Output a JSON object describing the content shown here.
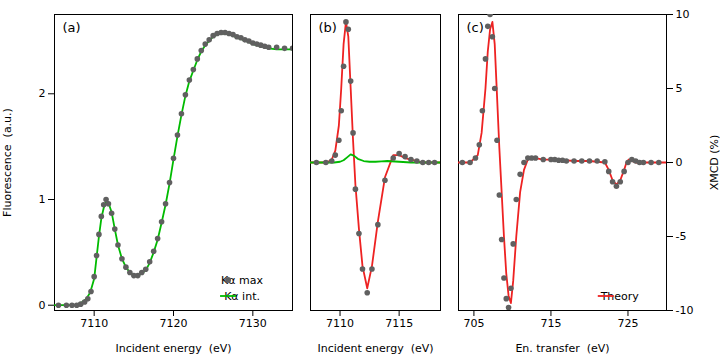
{
  "chart_data": [
    {
      "type": "line",
      "annotations": [
        "(a)"
      ],
      "xlabel": "Incident energy  (eV)",
      "ylabel": "Fluorescence  (a.u.)",
      "xlim": [
        7105,
        7135
      ],
      "xticks": [
        7110,
        7120,
        7130
      ],
      "ylim": [
        -0.05,
        2.75
      ],
      "yticks": [
        0,
        1,
        2
      ],
      "legend": "lower right",
      "series": [
        {
          "name": "Kα max",
          "type": "scatter",
          "marker": "o",
          "color": "#606060",
          "x": [
            7105.5,
            7106.5,
            7107.2,
            7107.8,
            7108.3,
            7108.8,
            7109.2,
            7109.6,
            7110.0,
            7110.3,
            7110.6,
            7110.9,
            7111.2,
            7111.5,
            7111.8,
            7112.2,
            7112.6,
            7113.0,
            7113.5,
            7114.0,
            7114.5,
            7115.0,
            7115.5,
            7116.0,
            7116.5,
            7117.0,
            7117.5,
            7118.0,
            7118.5,
            7119.0,
            7119.5,
            7120.0,
            7120.5,
            7121.0,
            7121.5,
            7122.0,
            7122.5,
            7123.0,
            7123.5,
            7124.0,
            7124.5,
            7125.0,
            7125.5,
            7126.0,
            7126.5,
            7127.0,
            7127.5,
            7128.0,
            7128.5,
            7129.0,
            7129.5,
            7130.0,
            7130.5,
            7131.0,
            7131.5,
            7132.0,
            7133.0,
            7134.0,
            7135.0
          ],
          "values": [
            0.0,
            0.0,
            0.0,
            0.0,
            0.01,
            0.03,
            0.06,
            0.13,
            0.27,
            0.47,
            0.67,
            0.84,
            0.95,
            1.0,
            0.96,
            0.87,
            0.72,
            0.57,
            0.44,
            0.36,
            0.31,
            0.28,
            0.28,
            0.31,
            0.34,
            0.41,
            0.51,
            0.63,
            0.79,
            0.96,
            1.16,
            1.39,
            1.61,
            1.81,
            1.99,
            2.13,
            2.23,
            2.33,
            2.41,
            2.47,
            2.51,
            2.55,
            2.57,
            2.58,
            2.58,
            2.57,
            2.56,
            2.54,
            2.53,
            2.51,
            2.5,
            2.48,
            2.47,
            2.46,
            2.45,
            2.44,
            2.44,
            2.43,
            2.43
          ]
        },
        {
          "name": "Kα int.",
          "type": "line",
          "color": "#00bb00",
          "x": [
            7105.0,
            7106.0,
            7107.0,
            7107.5,
            7108.0,
            7108.5,
            7109.0,
            7109.5,
            7110.0,
            7110.3,
            7110.6,
            7110.9,
            7111.2,
            7111.5,
            7111.8,
            7112.2,
            7112.6,
            7113.0,
            7113.5,
            7114.0,
            7114.5,
            7115.0,
            7115.5,
            7116.0,
            7116.5,
            7117.0,
            7117.5,
            7118.0,
            7118.5,
            7119.0,
            7119.5,
            7120.0,
            7120.5,
            7121.0,
            7121.5,
            7122.0,
            7122.5,
            7123.0,
            7123.5,
            7124.0,
            7124.5,
            7125.0,
            7125.5,
            7126.0,
            7126.5,
            7127.0,
            7127.5,
            7128.0,
            7128.5,
            7129.0,
            7129.5,
            7130.0,
            7130.5,
            7131.0,
            7132.0,
            7133.0,
            7134.0,
            7135.0
          ],
          "values": [
            0.0,
            0.0,
            0.0,
            0.0,
            0.01,
            0.03,
            0.06,
            0.12,
            0.25,
            0.45,
            0.65,
            0.82,
            0.92,
            0.98,
            0.97,
            0.88,
            0.72,
            0.57,
            0.44,
            0.36,
            0.31,
            0.28,
            0.28,
            0.3,
            0.33,
            0.4,
            0.5,
            0.62,
            0.78,
            0.95,
            1.15,
            1.38,
            1.6,
            1.8,
            1.98,
            2.12,
            2.22,
            2.32,
            2.4,
            2.46,
            2.5,
            2.54,
            2.56,
            2.57,
            2.57,
            2.56,
            2.55,
            2.53,
            2.52,
            2.5,
            2.49,
            2.47,
            2.46,
            2.45,
            2.43,
            2.42,
            2.42,
            2.42
          ]
        }
      ]
    },
    {
      "type": "line",
      "annotations": [
        "(b)"
      ],
      "xlabel": "Incident energy  (eV)",
      "xlim": [
        7107.5,
        7118.5
      ],
      "xticks": [
        7110,
        7115
      ],
      "ylim": [
        -10,
        10
      ],
      "tick_labels": "x",
      "series": [
        {
          "type": "line",
          "color": "#ee2222",
          "x": [
            7107.5,
            7108.5,
            7109.0,
            7109.3,
            7109.6,
            7109.9,
            7110.1,
            7110.3,
            7110.5,
            7110.7,
            7110.9,
            7111.1,
            7111.3,
            7111.6,
            7111.9,
            7112.3,
            7112.7,
            7113.2,
            7113.8,
            7114.5,
            7115.0,
            7115.5,
            7116.0,
            7116.5,
            7117.0,
            7117.5,
            7118.0,
            7118.5
          ],
          "values": [
            0.0,
            0.0,
            0.05,
            0.2,
            0.8,
            2.5,
            5.0,
            8.0,
            9.5,
            8.5,
            5.0,
            1.5,
            -1.5,
            -4.5,
            -7.0,
            -8.5,
            -7.0,
            -4.0,
            -1.0,
            0.5,
            0.5,
            0.3,
            0.2,
            0.1,
            0.0,
            0.0,
            0.0,
            0.0
          ]
        },
        {
          "type": "line",
          "color": "#00bb00",
          "x": [
            7107.5,
            7108.5,
            7109.0,
            7109.5,
            7110.0,
            7110.3,
            7110.6,
            7110.9,
            7111.2,
            7111.5,
            7112.0,
            7112.5,
            7113.0,
            7113.5,
            7114.0,
            7115.0,
            7116.0,
            7117.0,
            7118.0,
            7118.5
          ],
          "values": [
            0.0,
            0.0,
            0.0,
            0.0,
            0.05,
            0.15,
            0.35,
            0.55,
            0.45,
            0.25,
            0.1,
            0.05,
            0.05,
            0.08,
            0.1,
            0.05,
            0.0,
            0.0,
            0.0,
            0.0
          ]
        },
        {
          "type": "scatter",
          "marker": "o",
          "color": "#606060",
          "x": [
            7108.0,
            7108.8,
            7109.3,
            7109.6,
            7109.9,
            7110.1,
            7110.3,
            7110.5,
            7110.7,
            7110.9,
            7111.1,
            7111.3,
            7111.6,
            7111.9,
            7112.3,
            7112.7,
            7113.2,
            7113.8,
            7114.5,
            7115.0,
            7115.5,
            7116.0,
            7116.5,
            7117.0,
            7117.5,
            7118.0
          ],
          "values": [
            0.0,
            0.0,
            0.1,
            0.5,
            1.5,
            3.5,
            6.5,
            9.5,
            9.0,
            5.5,
            2.0,
            -1.8,
            -4.8,
            -7.2,
            -8.8,
            -7.2,
            -4.2,
            -1.2,
            0.3,
            0.6,
            0.4,
            0.2,
            0.1,
            0.0,
            0.0,
            0.0
          ]
        }
      ]
    },
    {
      "type": "line",
      "annotations": [
        "(c)"
      ],
      "xlabel": "En. transfer  (eV)",
      "ylabel": "XMCD (%)",
      "xlim": [
        703,
        730
      ],
      "xticks": [
        705,
        715,
        725
      ],
      "ylim": [
        -10,
        10
      ],
      "yticks": [
        -10,
        -5,
        0,
        5,
        10
      ],
      "legend": "lower right",
      "series": [
        {
          "name": "Theory",
          "type": "line",
          "color": "#ee2222",
          "x": [
            703.0,
            704.5,
            705.5,
            706.0,
            706.5,
            706.8,
            707.1,
            707.4,
            707.7,
            708.0,
            708.3,
            708.6,
            708.9,
            709.2,
            709.5,
            709.8,
            710.1,
            710.5,
            711.0,
            711.5,
            712.0,
            712.5,
            713.0,
            714.0,
            715.0,
            716.0,
            717.0,
            718.0,
            720.0,
            722.0,
            722.5,
            723.0,
            723.5,
            724.0,
            724.5,
            724.8,
            725.1,
            725.5,
            726.0,
            727.0,
            728.0,
            730.0
          ],
          "values": [
            0.0,
            0.0,
            0.5,
            2.0,
            5.0,
            7.5,
            9.0,
            9.5,
            8.0,
            4.5,
            1.0,
            -2.0,
            -5.0,
            -7.5,
            -9.0,
            -9.5,
            -8.0,
            -5.0,
            -2.0,
            -0.5,
            0.2,
            0.3,
            0.3,
            0.2,
            0.2,
            0.2,
            0.15,
            0.1,
            0.1,
            0.0,
            -0.5,
            -1.2,
            -1.5,
            -1.2,
            -0.5,
            0.0,
            0.2,
            0.1,
            0.0,
            0.0,
            0.0,
            0.0
          ]
        },
        {
          "type": "scatter",
          "marker": "o",
          "color": "#606060",
          "x": [
            703.5,
            704.5,
            705.2,
            705.7,
            706.1,
            706.5,
            706.8,
            707.1,
            707.4,
            707.7,
            708.0,
            708.3,
            708.6,
            708.9,
            709.2,
            709.5,
            709.8,
            710.1,
            710.5,
            711.0,
            711.5,
            712.0,
            712.5,
            713.0,
            714.0,
            715.0,
            715.5,
            716.0,
            716.5,
            717.0,
            718.0,
            719.0,
            720.0,
            721.0,
            722.0,
            722.5,
            723.0,
            723.5,
            724.0,
            724.5,
            725.0,
            725.5,
            726.0,
            726.5,
            727.0,
            728.0,
            729.0
          ],
          "values": [
            0.0,
            0.0,
            0.3,
            1.2,
            3.5,
            7.0,
            9.2,
            10.0,
            8.5,
            5.0,
            1.5,
            -2.2,
            -5.2,
            -7.8,
            -9.2,
            -9.8,
            -8.5,
            -5.5,
            -2.5,
            -0.8,
            0.0,
            0.3,
            0.3,
            0.3,
            0.2,
            0.2,
            0.2,
            0.15,
            0.15,
            0.1,
            0.1,
            0.1,
            0.1,
            0.1,
            0.05,
            -0.6,
            -1.3,
            -1.6,
            -1.3,
            -0.6,
            0.0,
            0.2,
            0.1,
            0.0,
            0.0,
            0.0,
            0.0
          ]
        }
      ]
    }
  ]
}
